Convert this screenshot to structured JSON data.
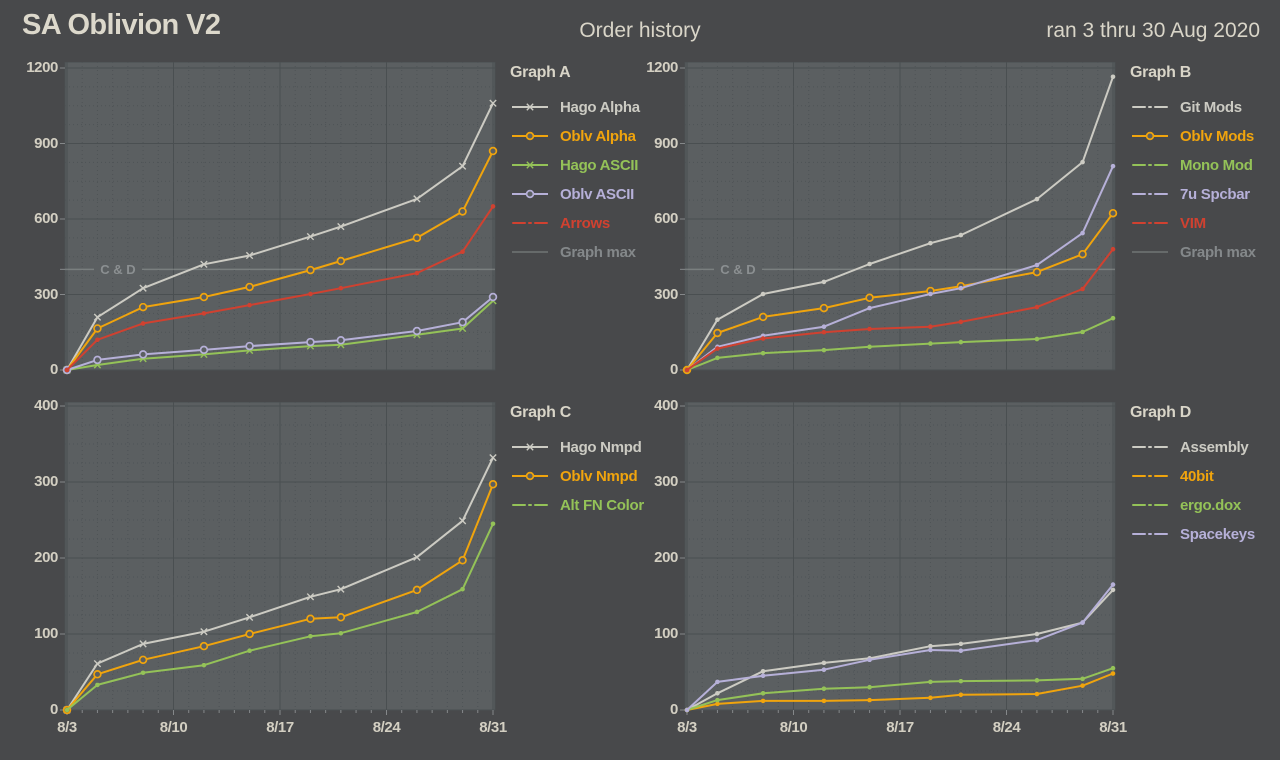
{
  "header": {
    "title": "SA Oblivion V2",
    "center": "Order history",
    "right": "ran 3 thru 30 Aug 2020"
  },
  "colors": {
    "bg": "#48494b",
    "plot_bg": "#5b5f61",
    "grid_major": "#4a4f51",
    "grid_minor": "#4e5356",
    "tick": "#85888a",
    "axis_text": "#d3cfc2",
    "title_text": "#d9d5c8",
    "series_gray": "#cccbc3",
    "series_orange": "#f0a40d",
    "series_green": "#94c258",
    "series_lavender": "#b6b0d8",
    "series_red": "#d04130",
    "maxline": "#9aa09e",
    "maxline_text": "#8b8f91"
  },
  "x_axis": {
    "tick_labels": [
      "8/3",
      "8/10",
      "8/17",
      "8/24",
      "8/31"
    ],
    "tick_days": [
      0,
      7,
      14,
      21,
      28
    ],
    "days": [
      0,
      2,
      5,
      9,
      12,
      16,
      18,
      23,
      26,
      28
    ]
  },
  "chart_data": [
    {
      "id": "A",
      "title": "Graph A",
      "type": "line",
      "ylim": [
        0,
        1200
      ],
      "yticks": [
        0,
        300,
        600,
        900,
        1200
      ],
      "minor_step": 75,
      "max_line": {
        "value": 400,
        "label": "C & D"
      },
      "series": [
        {
          "name": "Hago Alpha",
          "color_key": "gray",
          "marker": "x",
          "style": "solid",
          "values": [
            0,
            210,
            325,
            420,
            455,
            530,
            570,
            680,
            810,
            1060
          ]
        },
        {
          "name": "Oblv Alpha",
          "color_key": "orange",
          "marker": "o",
          "style": "solid",
          "values": [
            0,
            165,
            250,
            290,
            330,
            397,
            433,
            525,
            630,
            870
          ]
        },
        {
          "name": "Hago ASCII",
          "color_key": "green",
          "marker": "x",
          "style": "solid",
          "values": [
            0,
            20,
            45,
            62,
            78,
            95,
            100,
            140,
            165,
            275
          ]
        },
        {
          "name": "Oblv ASCII",
          "color_key": "lavender",
          "marker": "o",
          "style": "solid",
          "values": [
            0,
            40,
            62,
            80,
            95,
            111,
            118,
            155,
            190,
            290
          ]
        },
        {
          "name": "Arrows",
          "color_key": "red",
          "marker": "dot",
          "style": "dashdot",
          "values": [
            0,
            120,
            185,
            225,
            258,
            302,
            325,
            385,
            470,
            650
          ]
        },
        {
          "name": "Graph max",
          "color_key": "muted",
          "marker": "none",
          "style": "max",
          "values": [
            400,
            400,
            400,
            400,
            400,
            400,
            400,
            400,
            400,
            400
          ]
        }
      ]
    },
    {
      "id": "B",
      "title": "Graph B",
      "type": "line",
      "ylim": [
        0,
        1200
      ],
      "yticks": [
        0,
        300,
        600,
        900,
        1200
      ],
      "minor_step": 75,
      "max_line": {
        "value": 400,
        "label": "C & D"
      },
      "series": [
        {
          "name": "Git Mods",
          "color_key": "gray",
          "marker": "dot",
          "style": "dashdot",
          "values": [
            0,
            200,
            302,
            350,
            421,
            504,
            536,
            679,
            826,
            1165
          ]
        },
        {
          "name": "Oblv Mods",
          "color_key": "orange",
          "marker": "o",
          "style": "solid",
          "values": [
            0,
            147,
            211,
            246,
            287,
            314,
            333,
            389,
            460,
            623
          ]
        },
        {
          "name": "Mono Mod",
          "color_key": "green",
          "marker": "dot",
          "style": "dashdot",
          "values": [
            0,
            48,
            67,
            79,
            92,
            105,
            111,
            123,
            151,
            206
          ]
        },
        {
          "name": "7u Spcbar",
          "color_key": "lavender",
          "marker": "dot",
          "style": "dashdot",
          "values": [
            0,
            92,
            136,
            172,
            246,
            302,
            325,
            417,
            544,
            810
          ]
        },
        {
          "name": "VIM",
          "color_key": "red",
          "marker": "dot",
          "style": "dashdot",
          "values": [
            0,
            85,
            125,
            150,
            163,
            172,
            191,
            250,
            322,
            480
          ]
        },
        {
          "name": "Graph max",
          "color_key": "muted",
          "marker": "none",
          "style": "max",
          "values": [
            400,
            400,
            400,
            400,
            400,
            400,
            400,
            400,
            400,
            400
          ]
        }
      ]
    },
    {
      "id": "C",
      "title": "Graph C",
      "type": "line",
      "ylim": [
        0,
        400
      ],
      "yticks": [
        0,
        100,
        200,
        300,
        400
      ],
      "minor_step": 25,
      "max_line": null,
      "series": [
        {
          "name": "Hago Nmpd",
          "color_key": "gray",
          "marker": "x",
          "style": "solid",
          "values": [
            0,
            61,
            87,
            103,
            122,
            149,
            159,
            201,
            249,
            332
          ]
        },
        {
          "name": "Oblv Nmpd",
          "color_key": "orange",
          "marker": "o",
          "style": "solid",
          "values": [
            0,
            47,
            66,
            84,
            100,
            120,
            122,
            158,
            197,
            297
          ]
        },
        {
          "name": "Alt FN Color",
          "color_key": "green",
          "marker": "dot",
          "style": "dashdot",
          "values": [
            0,
            33,
            49,
            59,
            78,
            97,
            101,
            129,
            159,
            245
          ]
        }
      ]
    },
    {
      "id": "D",
      "title": "Graph D",
      "type": "line",
      "ylim": [
        0,
        400
      ],
      "yticks": [
        0,
        100,
        200,
        300,
        400
      ],
      "minor_step": 25,
      "max_line": null,
      "series": [
        {
          "name": "Assembly",
          "color_key": "gray",
          "marker": "dot",
          "style": "dashdot",
          "values": [
            0,
            22,
            51,
            62,
            68,
            84,
            87,
            100,
            115,
            158
          ]
        },
        {
          "name": "40bit",
          "color_key": "orange",
          "marker": "dot",
          "style": "dashdot",
          "values": [
            0,
            8,
            12,
            12,
            13,
            16,
            20,
            21,
            32,
            48
          ]
        },
        {
          "name": "ergo.dox",
          "color_key": "green",
          "marker": "dot",
          "style": "dashdot",
          "values": [
            0,
            13,
            22,
            28,
            30,
            37,
            38,
            39,
            41,
            55
          ]
        },
        {
          "name": "Spacekeys",
          "color_key": "lavender",
          "marker": "dot",
          "style": "dashdot",
          "values": [
            0,
            37,
            45,
            53,
            66,
            79,
            78,
            92,
            115,
            165
          ]
        }
      ]
    }
  ]
}
